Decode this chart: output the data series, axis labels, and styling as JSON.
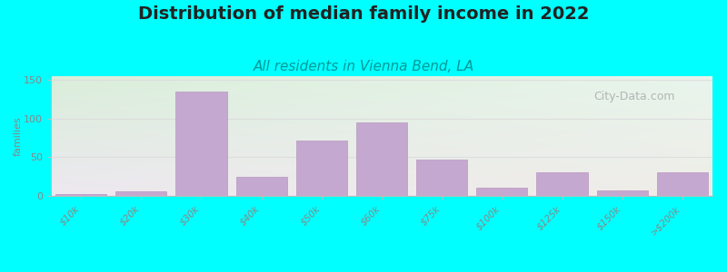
{
  "title": "Distribution of median family income in 2022",
  "subtitle": "All residents in Vienna Bend, LA",
  "ylabel": "families",
  "categories": [
    "$10k",
    "$20k",
    "$30k",
    "$40k",
    "$50k",
    "$60k",
    "$75k",
    "$100k",
    "$125k",
    "$150k",
    ">$200k"
  ],
  "values": [
    2,
    6,
    135,
    25,
    72,
    95,
    47,
    11,
    30,
    7,
    30
  ],
  "bar_color": "#c5a8d0",
  "bar_edge_color": "#b898c0",
  "background_color": "#00ffff",
  "ylim": [
    0,
    155
  ],
  "yticks": [
    0,
    50,
    100,
    150
  ],
  "title_fontsize": 14,
  "subtitle_fontsize": 11,
  "subtitle_color": "#009999",
  "ylabel_fontsize": 8,
  "tick_label_color": "#888888",
  "watermark": "City-Data.com",
  "watermark_color": "#aaaaaa",
  "grid_color": "#dddddd",
  "bg_color_topleft": "#daeeda",
  "bg_color_topright": "#e8f5ec",
  "bg_color_bottomleft": "#ede8f0",
  "bg_color_bottomright": "#f0ede8"
}
